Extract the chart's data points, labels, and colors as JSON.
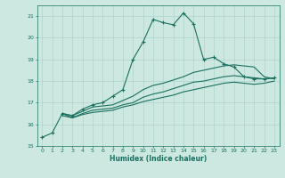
{
  "xlabel": "Humidex (Indice chaleur)",
  "xlim": [
    -0.5,
    23.5
  ],
  "ylim": [
    15,
    21.5
  ],
  "yticks": [
    15,
    16,
    17,
    18,
    19,
    20,
    21
  ],
  "xticks": [
    0,
    1,
    2,
    3,
    4,
    5,
    6,
    7,
    8,
    9,
    10,
    11,
    12,
    13,
    14,
    15,
    16,
    17,
    18,
    19,
    20,
    21,
    22,
    23
  ],
  "bg_color": "#cce8e0",
  "grid_color": "#aed4cc",
  "line_color": "#1a7060",
  "lines": [
    {
      "x": [
        0,
        1,
        2,
        3,
        4,
        5,
        6,
        7,
        8,
        9,
        10,
        11,
        12,
        13,
        14,
        15,
        16,
        17,
        18,
        19,
        20,
        21,
        22,
        23
      ],
      "y": [
        15.4,
        15.6,
        16.5,
        16.4,
        16.7,
        16.9,
        17.0,
        17.3,
        17.6,
        19.0,
        19.8,
        20.85,
        20.7,
        20.6,
        21.15,
        20.65,
        19.0,
        19.1,
        18.8,
        18.65,
        18.2,
        18.1,
        18.1,
        18.15
      ],
      "marker": "+",
      "markersize": 3.5,
      "linewidth": 0.8
    },
    {
      "x": [
        2,
        3,
        4,
        5,
        6,
        7,
        8,
        9,
        10,
        11,
        12,
        13,
        14,
        15,
        16,
        17,
        18,
        19,
        20,
        21,
        22,
        23
      ],
      "y": [
        16.5,
        16.4,
        16.6,
        16.8,
        16.85,
        16.9,
        17.1,
        17.3,
        17.6,
        17.8,
        17.9,
        18.05,
        18.2,
        18.4,
        18.5,
        18.6,
        18.7,
        18.75,
        18.7,
        18.65,
        18.2,
        18.1
      ],
      "marker": null,
      "markersize": 0,
      "linewidth": 0.8
    },
    {
      "x": [
        2,
        3,
        4,
        5,
        6,
        7,
        8,
        9,
        10,
        11,
        12,
        13,
        14,
        15,
        16,
        17,
        18,
        19,
        20,
        21,
        22,
        23
      ],
      "y": [
        16.5,
        16.3,
        16.5,
        16.65,
        16.7,
        16.75,
        16.9,
        17.0,
        17.25,
        17.4,
        17.5,
        17.65,
        17.8,
        17.95,
        18.0,
        18.1,
        18.2,
        18.25,
        18.2,
        18.15,
        18.1,
        18.15
      ],
      "marker": null,
      "markersize": 0,
      "linewidth": 0.8
    },
    {
      "x": [
        2,
        3,
        4,
        5,
        6,
        7,
        8,
        9,
        10,
        11,
        12,
        13,
        14,
        15,
        16,
        17,
        18,
        19,
        20,
        21,
        22,
        23
      ],
      "y": [
        16.4,
        16.3,
        16.45,
        16.55,
        16.6,
        16.65,
        16.8,
        16.9,
        17.05,
        17.15,
        17.25,
        17.35,
        17.5,
        17.6,
        17.7,
        17.8,
        17.9,
        17.95,
        17.9,
        17.85,
        17.9,
        18.0
      ],
      "marker": null,
      "markersize": 0,
      "linewidth": 0.8
    }
  ]
}
